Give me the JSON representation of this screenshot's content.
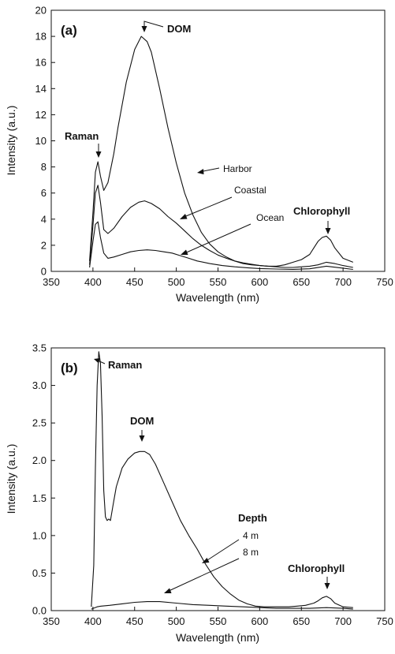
{
  "chart_data": [
    {
      "type": "line",
      "panel_label": "(a)",
      "xlabel": "Wavelength (nm)",
      "ylabel": "Intensity (a.u.)",
      "xlim": [
        350,
        750
      ],
      "ylim": [
        0,
        20
      ],
      "xticks": [
        350,
        400,
        450,
        500,
        550,
        600,
        650,
        700,
        750
      ],
      "yticks": [
        0,
        2,
        4,
        6,
        8,
        10,
        12,
        14,
        16,
        18,
        20
      ],
      "grid": false,
      "annotations": [
        "Raman",
        "DOM",
        "Chlorophyll"
      ],
      "series": [
        {
          "name": "Harbor",
          "x": [
            396,
            400,
            403,
            406,
            409,
            413,
            418,
            425,
            430,
            440,
            450,
            458,
            465,
            470,
            480,
            490,
            500,
            510,
            520,
            530,
            540,
            550,
            560,
            570,
            580,
            590,
            600,
            610,
            620,
            630,
            640,
            650,
            660,
            665,
            670,
            675,
            680,
            685,
            690,
            700,
            712
          ],
          "y": [
            0.8,
            4.5,
            7.6,
            8.4,
            7.3,
            6.2,
            6.8,
            9.0,
            11.0,
            14.5,
            17.0,
            18.0,
            17.6,
            16.8,
            14.0,
            11.0,
            8.3,
            6.0,
            4.3,
            3.0,
            2.1,
            1.5,
            1.1,
            0.8,
            0.6,
            0.5,
            0.45,
            0.4,
            0.4,
            0.5,
            0.7,
            0.9,
            1.3,
            1.8,
            2.3,
            2.6,
            2.7,
            2.4,
            1.8,
            1.0,
            0.7
          ]
        },
        {
          "name": "Coastal",
          "x": [
            396,
            400,
            403,
            406,
            409,
            413,
            418,
            425,
            435,
            445,
            455,
            462,
            470,
            480,
            490,
            500,
            510,
            520,
            530,
            540,
            550,
            560,
            570,
            580,
            590,
            600,
            610,
            620,
            630,
            640,
            650,
            660,
            670,
            680,
            690,
            700,
            712
          ],
          "y": [
            0.5,
            3.5,
            6.0,
            6.6,
            5.3,
            3.2,
            2.9,
            3.3,
            4.2,
            4.9,
            5.3,
            5.4,
            5.2,
            4.8,
            4.2,
            3.7,
            3.1,
            2.5,
            2.0,
            1.6,
            1.25,
            1.0,
            0.8,
            0.65,
            0.55,
            0.45,
            0.4,
            0.35,
            0.3,
            0.3,
            0.35,
            0.4,
            0.5,
            0.7,
            0.6,
            0.45,
            0.3
          ]
        },
        {
          "name": "Ocean",
          "x": [
            396,
            400,
            403,
            406,
            409,
            413,
            418,
            425,
            435,
            445,
            455,
            465,
            475,
            485,
            495,
            505,
            515,
            525,
            540,
            555,
            570,
            585,
            600,
            620,
            640,
            660,
            680,
            700,
            712
          ],
          "y": [
            0.3,
            2.3,
            3.6,
            3.8,
            2.6,
            1.4,
            1.0,
            1.1,
            1.3,
            1.5,
            1.6,
            1.65,
            1.6,
            1.5,
            1.4,
            1.2,
            1.0,
            0.8,
            0.6,
            0.45,
            0.35,
            0.28,
            0.22,
            0.18,
            0.16,
            0.2,
            0.4,
            0.25,
            0.15
          ]
        }
      ]
    },
    {
      "type": "line",
      "panel_label": "(b)",
      "xlabel": "Wavelength (nm)",
      "ylabel": "Intensity (a.u.)",
      "xlim": [
        350,
        750
      ],
      "ylim": [
        0,
        3.5
      ],
      "xticks": [
        350,
        400,
        450,
        500,
        550,
        600,
        650,
        700,
        750
      ],
      "yticks": [
        0.0,
        0.5,
        1.0,
        1.5,
        2.0,
        2.5,
        3.0,
        3.5
      ],
      "grid": false,
      "annotations": [
        "Raman",
        "DOM",
        "Chlorophyll"
      ],
      "legend_title": "Depth",
      "series": [
        {
          "name": "4 m",
          "x": [
            398,
            401,
            403,
            405,
            407,
            409,
            411,
            413,
            415,
            417,
            419,
            421,
            424,
            428,
            435,
            442,
            450,
            456,
            462,
            468,
            475,
            485,
            495,
            505,
            515,
            525,
            535,
            545,
            555,
            565,
            575,
            585,
            595,
            605,
            615,
            625,
            635,
            645,
            655,
            665,
            670,
            675,
            680,
            685,
            690,
            700,
            712
          ],
          "y": [
            0.05,
            0.6,
            1.9,
            3.0,
            3.45,
            3.3,
            2.6,
            1.6,
            1.25,
            1.2,
            1.22,
            1.2,
            1.4,
            1.65,
            1.9,
            2.02,
            2.1,
            2.12,
            2.12,
            2.08,
            1.95,
            1.7,
            1.45,
            1.2,
            1.0,
            0.82,
            0.62,
            0.45,
            0.32,
            0.22,
            0.14,
            0.09,
            0.06,
            0.05,
            0.05,
            0.05,
            0.05,
            0.06,
            0.07,
            0.1,
            0.13,
            0.17,
            0.19,
            0.16,
            0.1,
            0.05,
            0.04
          ]
        },
        {
          "name": "8 m",
          "x": [
            398,
            405,
            410,
            420,
            435,
            450,
            465,
            480,
            500,
            520,
            540,
            560,
            580,
            600,
            620,
            640,
            660,
            680,
            700,
            712
          ],
          "y": [
            0.02,
            0.05,
            0.06,
            0.07,
            0.09,
            0.11,
            0.12,
            0.12,
            0.1,
            0.08,
            0.07,
            0.06,
            0.05,
            0.04,
            0.03,
            0.03,
            0.03,
            0.04,
            0.03,
            0.02
          ]
        }
      ]
    }
  ]
}
